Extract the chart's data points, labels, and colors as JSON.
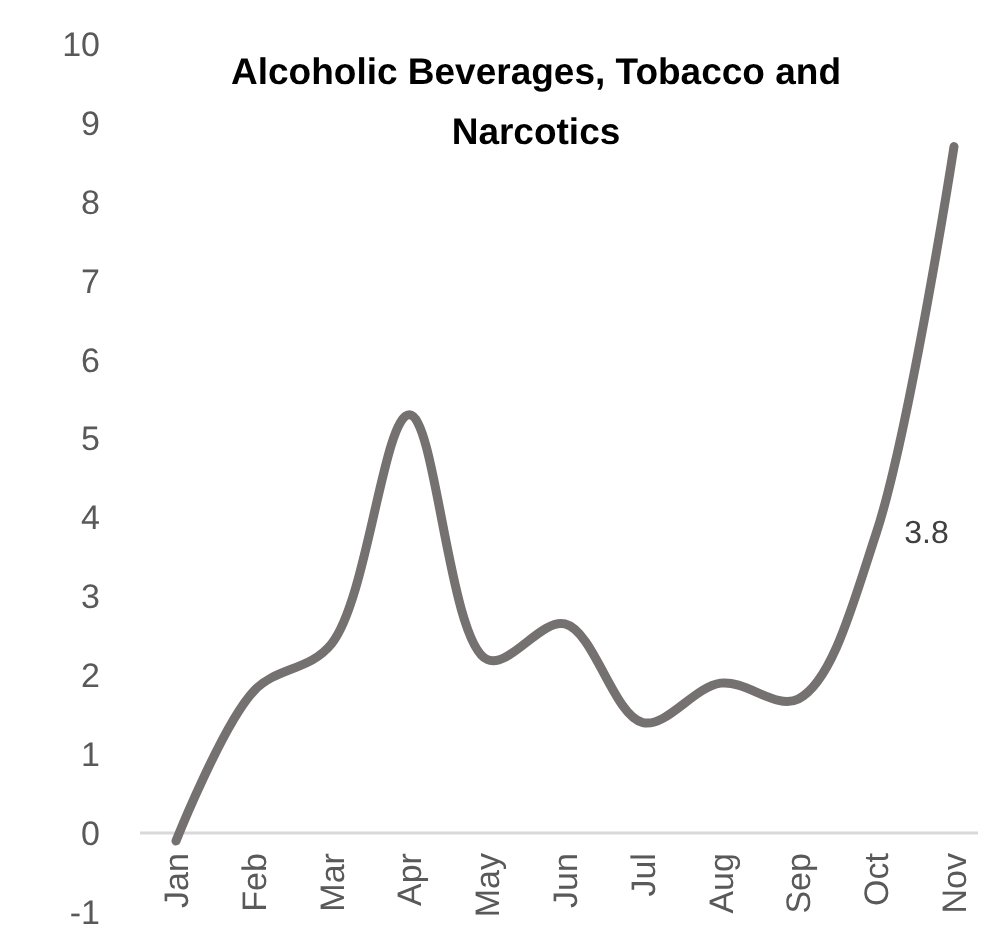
{
  "chart_data": {
    "type": "line",
    "title": "Alcoholic Beverages, Tobacco and Narcotics",
    "categories": [
      "Jan",
      "Feb",
      "Mar",
      "Apr",
      "May",
      "Jun",
      "Jul",
      "Aug",
      "Sep",
      "Oct",
      "Nov"
    ],
    "series": [
      {
        "color": "#767171",
        "values": [
          -0.1,
          1.8,
          2.4,
          5.3,
          2.2,
          2.65,
          1.4,
          1.9,
          1.7,
          3.8,
          8.7
        ],
        "value_labels": [
          null,
          null,
          null,
          null,
          null,
          null,
          null,
          null,
          null,
          "3.8",
          null
        ]
      }
    ],
    "ylim": [
      -1,
      10
    ],
    "yticks": [
      -1,
      0,
      1,
      2,
      3,
      4,
      5,
      6,
      7,
      8,
      9,
      10
    ],
    "grid": false,
    "marker": "none",
    "line_style": "solid"
  }
}
